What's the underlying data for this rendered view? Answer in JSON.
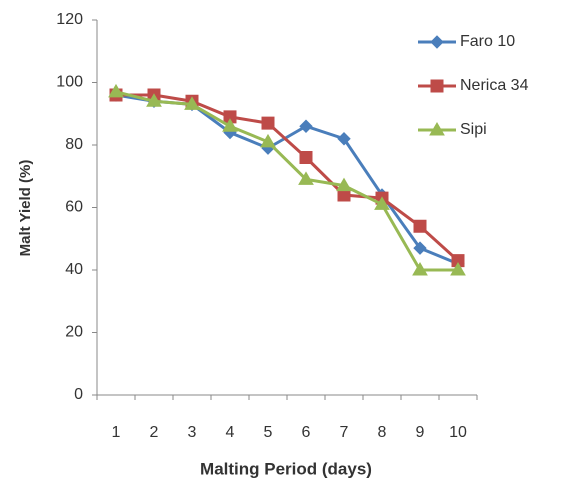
{
  "chart_data": {
    "type": "line",
    "x_label": "Malting Period (days)",
    "y_label": "Malt Yield (%)",
    "categories": [
      "1",
      "2",
      "3",
      "4",
      "5",
      "6",
      "7",
      "8",
      "9",
      "10"
    ],
    "series": [
      {
        "name": "Faro 10",
        "color": "#4a7ebb",
        "marker": "diamond",
        "values": [
          96,
          94,
          93,
          84,
          79,
          86,
          82,
          64,
          47,
          42
        ]
      },
      {
        "name": "Nerica 34",
        "color": "#be4b48",
        "marker": "square",
        "values": [
          96,
          96,
          94,
          89,
          87,
          76,
          64,
          63,
          54,
          43
        ]
      },
      {
        "name": "Sipi",
        "color": "#98b954",
        "marker": "triangle",
        "values": [
          97,
          94,
          93,
          86,
          81,
          69,
          67,
          61,
          40,
          40
        ]
      }
    ],
    "ylim": [
      0,
      120
    ],
    "yticks": [
      0,
      20,
      40,
      60,
      80,
      100,
      120
    ],
    "grid": false,
    "legend": "top-right"
  }
}
